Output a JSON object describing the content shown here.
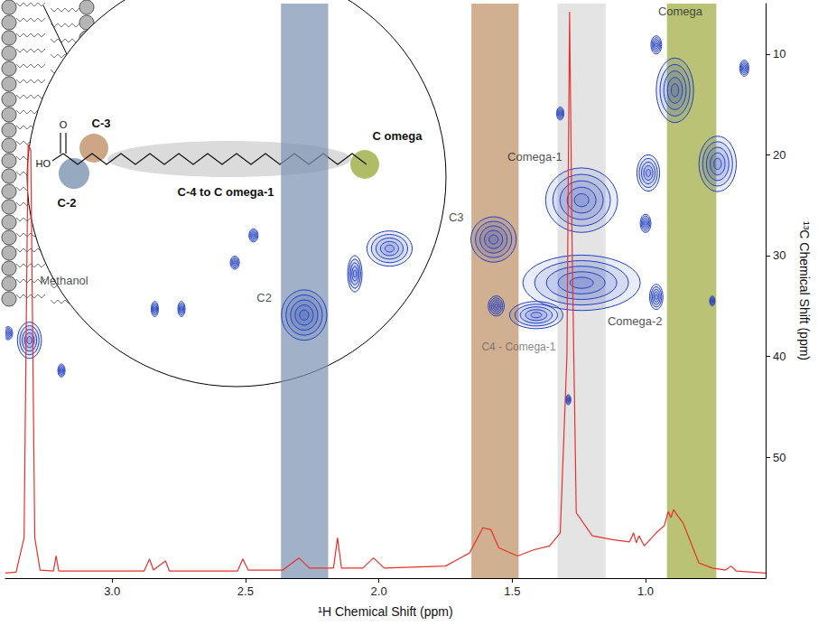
{
  "chart_data": {
    "type": "contour",
    "x_label": "¹H Chemical Shift (ppm)",
    "y_label": "¹³C Chemical Shift (ppm)",
    "xlim": [
      3.4,
      0.55
    ],
    "xticks": [
      {
        "value": 3,
        "label": "3.0"
      },
      {
        "value": 2.5,
        "label": "2.5"
      },
      {
        "value": 2,
        "label": "2.0"
      },
      {
        "value": 1.5,
        "label": "1.5"
      },
      {
        "value": 1,
        "label": "1.0"
      }
    ],
    "ylim": [
      62,
      5
    ],
    "yticks": [
      10,
      20,
      30,
      40,
      50
    ],
    "grid": false,
    "series": [
      {
        "type": "contour",
        "color": "#2340c0",
        "x": [
          3.31,
          3.39,
          3.19,
          2.84,
          2.74,
          2.54,
          2.47,
          2.28,
          2.09,
          1.96,
          1.57,
          1.56,
          1.24,
          1.24,
          1.41,
          1.0,
          0.96,
          1.32,
          0.96,
          0.89,
          0.73,
          0.99,
          0.63,
          0.75,
          1.29
        ],
        "y": [
          38.4,
          37.7,
          41.4,
          35.3,
          35.3,
          30.7,
          28.0,
          35.9,
          31.8,
          29.3,
          28.4,
          35.0,
          24.5,
          32.7,
          35.9,
          26.8,
          34.1,
          15.9,
          9.1,
          13.6,
          20.9,
          21.8,
          11.4,
          34.5,
          44.3
        ],
        "width": [
          0.09,
          0.034,
          0.027,
          0.027,
          0.027,
          0.034,
          0.034,
          0.17,
          0.054,
          0.17,
          0.17,
          0.06,
          0.27,
          0.44,
          0.2,
          0.04,
          0.05,
          0.027,
          0.04,
          0.14,
          0.14,
          0.085,
          0.034,
          0.02,
          0.02
        ],
        "height": [
          3.6,
          1.3,
          1.3,
          1.5,
          1.5,
          1.3,
          1.3,
          5.0,
          3.6,
          3.5,
          4.5,
          2.0,
          6.4,
          5.5,
          2.7,
          1.8,
          2.5,
          1.3,
          1.8,
          6.4,
          5.5,
          3.6,
          1.6,
          1.0,
          1.0
        ]
      },
      {
        "type": "line",
        "color": "#e8302c",
        "line_style": "solid",
        "x": [
          3.4,
          3.36,
          3.33,
          3.315,
          3.305,
          3.29,
          3.27,
          3.22,
          3.21,
          3.2,
          2.88,
          2.86,
          2.845,
          2.8,
          2.785,
          2.53,
          2.51,
          2.49,
          2.36,
          2.3,
          2.26,
          2.17,
          2.155,
          2.14,
          2.06,
          2.02,
          1.98,
          1.75,
          1.66,
          1.61,
          1.58,
          1.55,
          1.48,
          1.42,
          1.36,
          1.32,
          1.295,
          1.285,
          1.275,
          1.26,
          1.2,
          1.12,
          1.06,
          1.045,
          1.035,
          1.025,
          1.005,
          0.96,
          0.93,
          0.915,
          0.905,
          0.895,
          0.88,
          0.86,
          0.83,
          0.8,
          0.75,
          0.7,
          0.68,
          0.66,
          0.55
        ],
        "values": [
          61.5,
          61.4,
          58,
          19,
          19.5,
          58,
          61.2,
          61.3,
          59.8,
          61.3,
          61.3,
          60.1,
          61.2,
          60.3,
          61.3,
          61.3,
          60.1,
          61.2,
          61.2,
          60.0,
          61.0,
          61.0,
          58.0,
          61.0,
          61.0,
          60.0,
          61.0,
          60.8,
          59.5,
          57.0,
          57.2,
          59.0,
          59.8,
          59.2,
          58.8,
          57.5,
          40,
          5.8,
          30,
          55.5,
          57.8,
          58.2,
          58.4,
          57.5,
          58.5,
          57.8,
          58.8,
          57.5,
          56.8,
          55.4,
          56,
          55.2,
          55.8,
          56.5,
          58.5,
          60.5,
          61.0,
          61.2,
          60.8,
          61.3,
          61.5
        ]
      }
    ],
    "bands": [
      {
        "from": 2.367,
        "to": 2.19,
        "color": "#7d93b2"
      },
      {
        "from": 1.653,
        "to": 1.476,
        "color": "#bf9066"
      },
      {
        "from": 1.33,
        "to": 1.15,
        "color": "#d9d9d9"
      },
      {
        "from": 0.92,
        "to": 0.735,
        "color": "#9eab40"
      }
    ],
    "annotations": [
      {
        "text": "Methanol",
        "x": 3.18,
        "y": 32.5,
        "color": "#222222"
      },
      {
        "text": "C2",
        "x": 2.43,
        "y": 34.2,
        "color": "#222222"
      },
      {
        "text": "C3",
        "x": 1.71,
        "y": 26.2,
        "color": "#222222"
      },
      {
        "text": "Comega-1",
        "x": 1.415,
        "y": 20.2,
        "color": "#222222"
      },
      {
        "text": "Comega",
        "x": 0.87,
        "y": 5.8,
        "color": "#222222"
      },
      {
        "text": "Comega-2",
        "x": 1.04,
        "y": 36.5,
        "color": "#222222"
      },
      {
        "text": "C4 - Comega-1",
        "x": 1.476,
        "y": 39.1,
        "color": "#666666"
      }
    ],
    "inset": {
      "hydroxyl": "HO",
      "carbonyl": "O",
      "c2": "C-2",
      "c3": "C-3",
      "chain": "C-4 to C omega-1",
      "omega": "C omega"
    }
  }
}
